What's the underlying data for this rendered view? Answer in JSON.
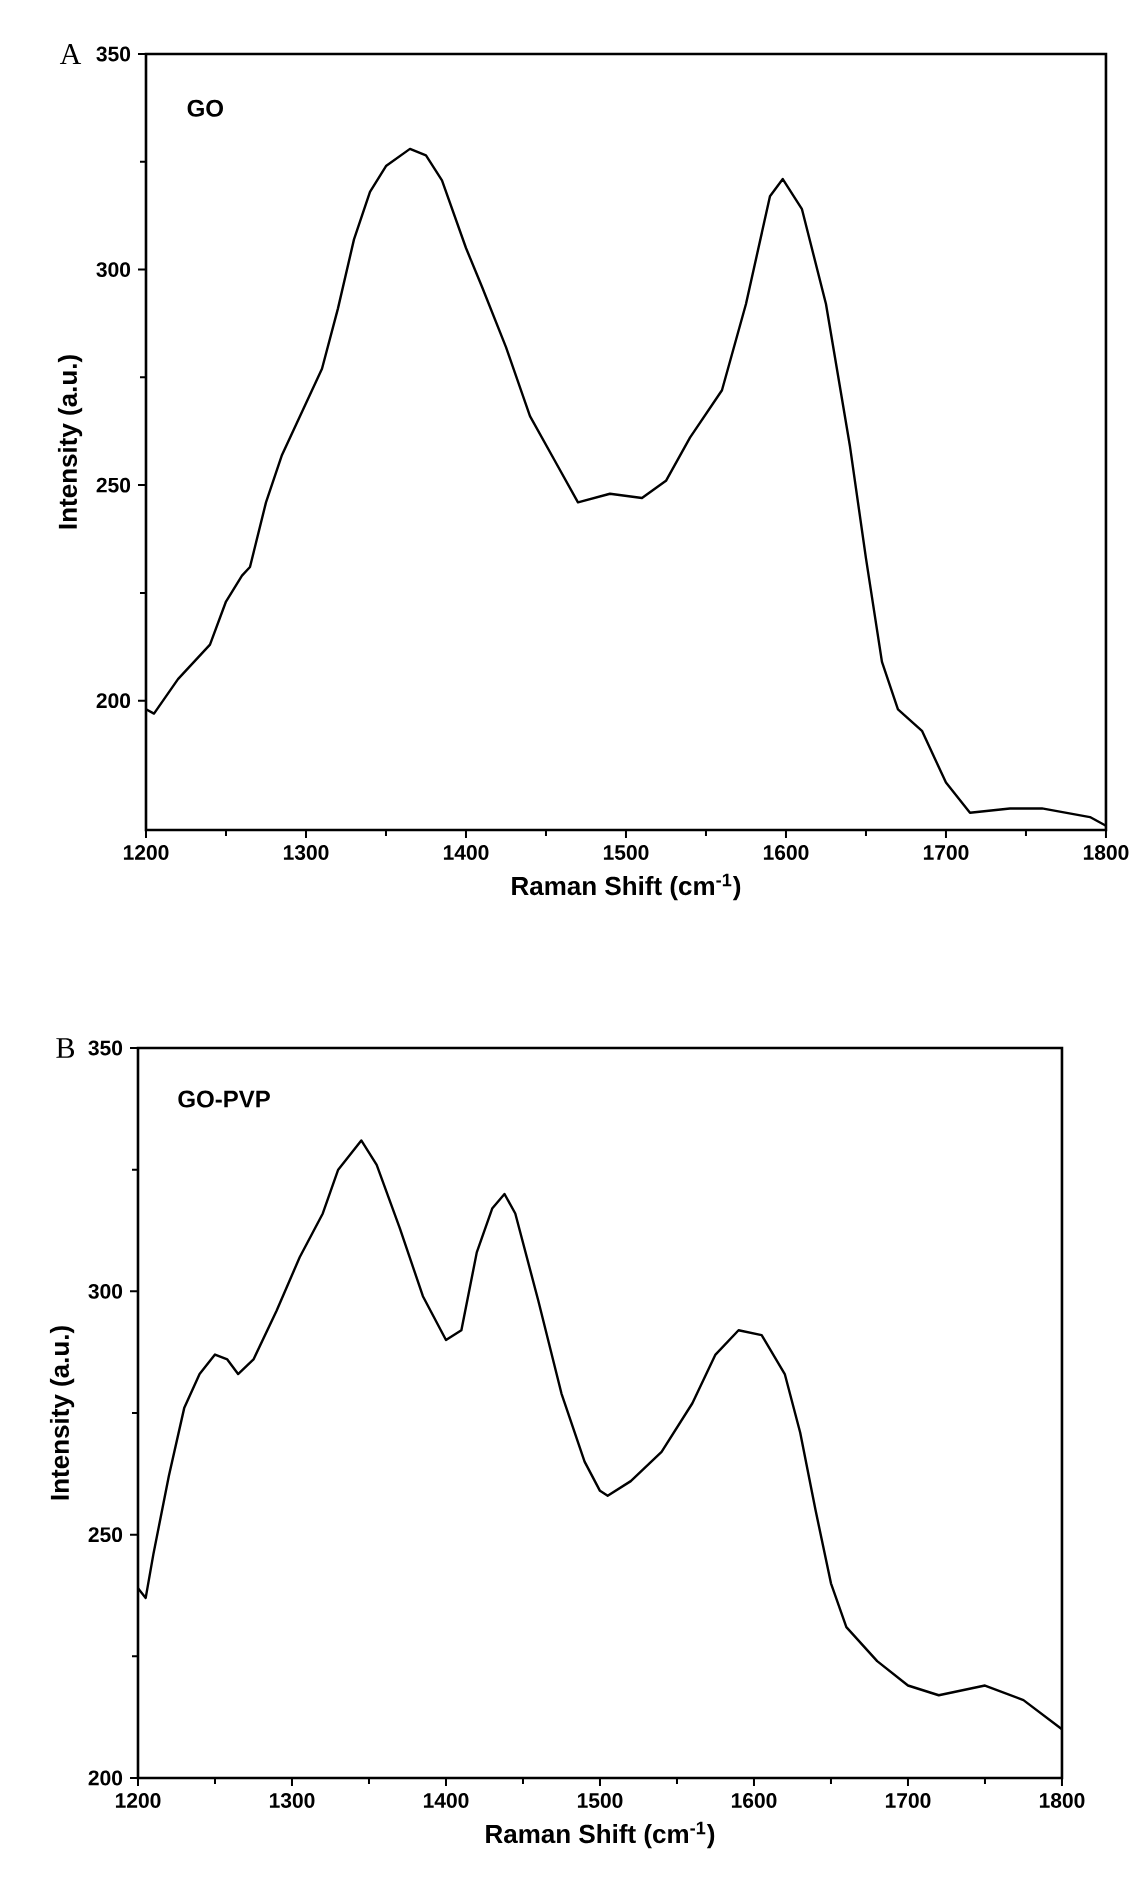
{
  "chart_data": [
    {
      "type": "line",
      "annotations": [
        "A",
        "GO"
      ],
      "xlabel": "Raman Shift (cm$^{-1}$)",
      "ylabel": "Intensity (a.u.)",
      "xlim": [
        1200,
        1800
      ],
      "ylim": [
        170,
        350
      ],
      "xticks": [
        1200,
        1300,
        1400,
        1500,
        1600,
        1700,
        1800
      ],
      "yticks": [
        200,
        250,
        300,
        350
      ],
      "series": [
        {
          "color": "#000000",
          "x": [
            1200,
            1205,
            1220,
            1240,
            1250,
            1260,
            1265,
            1275,
            1285,
            1300,
            1310,
            1320,
            1330,
            1340,
            1350,
            1365,
            1375,
            1385,
            1400,
            1410,
            1425,
            1440,
            1455,
            1470,
            1490,
            1510,
            1525,
            1540,
            1560,
            1575,
            1590,
            1598,
            1610,
            1625,
            1640,
            1650,
            1660,
            1670,
            1685,
            1700,
            1715,
            1740,
            1760,
            1790,
            1800
          ],
          "values": [
            198,
            197,
            205,
            213,
            223,
            229,
            231,
            246,
            257,
            269,
            277,
            291,
            307,
            318,
            324,
            328,
            326.5,
            320.7,
            305,
            296,
            282,
            266,
            256,
            246,
            248,
            247,
            251,
            261,
            272,
            292,
            317,
            321,
            314,
            292,
            259,
            233,
            209,
            198,
            193,
            181,
            174,
            175,
            175,
            173,
            171
          ]
        }
      ]
    },
    {
      "type": "line",
      "annotations": [
        "B",
        "GO-PVP"
      ],
      "xlabel": "Raman Shift (cm$^{-1}$)",
      "ylabel": "Intensity (a.u.)",
      "xlim": [
        1200,
        1800
      ],
      "ylim": [
        200,
        350
      ],
      "xticks": [
        1200,
        1300,
        1400,
        1500,
        1600,
        1700,
        1800
      ],
      "yticks": [
        200,
        250,
        300,
        350
      ],
      "series": [
        {
          "color": "#000000",
          "x": [
            1200,
            1205,
            1210,
            1220,
            1230,
            1240,
            1250,
            1258,
            1265,
            1275,
            1290,
            1305,
            1320,
            1330,
            1345,
            1355,
            1370,
            1385,
            1400,
            1410,
            1420,
            1430,
            1438,
            1445,
            1460,
            1475,
            1490,
            1500,
            1505,
            1520,
            1540,
            1560,
            1575,
            1590,
            1605,
            1620,
            1630,
            1640,
            1650,
            1660,
            1680,
            1700,
            1720,
            1750,
            1775,
            1800
          ],
          "values": [
            239,
            237,
            246,
            262,
            276,
            283,
            287,
            286,
            283,
            286,
            296,
            307,
            316,
            325,
            331,
            326,
            313,
            299,
            290,
            292,
            308,
            317,
            320,
            316,
            298,
            279,
            265,
            259,
            258,
            261,
            267,
            277,
            287,
            292,
            291,
            283,
            271,
            255,
            240,
            231,
            224,
            219,
            217,
            219,
            216,
            210
          ]
        }
      ]
    }
  ]
}
